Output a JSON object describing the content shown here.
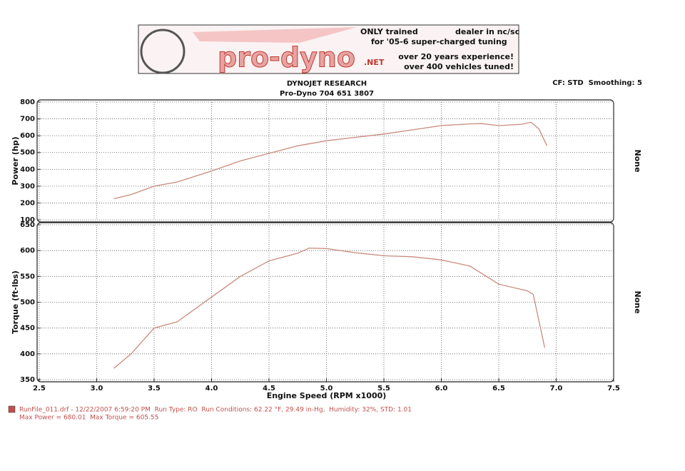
{
  "banner": {
    "logo": "pro-dyno",
    "logo_suffix": ".NET",
    "line1a": "ONLY trained",
    "line1b": "dealer in nc/sc",
    "line2": "for '05-6 super-charged tuning",
    "line3": "over 20 years experience!",
    "line4": "over 400 vehicles tuned!"
  },
  "footer": {
    "run": "RunFile_011.drf - 12/22/2007 6:59:20 PM  Run Type: RO  Run Conditions: 62.22 °F, 29.49 in-Hg,  Humidity: 32%, STD: 1.01",
    "summary": "Max Power = 680.01  Max Torque = 605.55",
    "color": "#c0504d"
  },
  "chart_data": [
    {
      "type": "line",
      "title": "DYNOJET RESEARCH",
      "subtitle": "Pro-Dyno 704 651 3807",
      "note": "CF: STD  Smoothing: 5",
      "ylabel": "Power (hp)",
      "y2label": "None",
      "grid": true,
      "x": [
        3.15,
        3.3,
        3.5,
        3.7,
        4.0,
        4.25,
        4.5,
        4.75,
        5.0,
        5.25,
        5.5,
        5.75,
        6.0,
        6.25,
        6.35,
        6.5,
        6.7,
        6.78,
        6.85,
        6.92
      ],
      "xlim": [
        2.5,
        7.5
      ],
      "series": [
        {
          "color": "#c98b7c",
          "values": [
            225,
            250,
            300,
            325,
            390,
            450,
            495,
            540,
            570,
            590,
            610,
            635,
            660,
            670,
            672,
            660,
            668,
            680,
            640,
            540
          ]
        }
      ],
      "ylim": [
        100,
        800
      ],
      "yticks": [
        100,
        200,
        300,
        400,
        500,
        600,
        700,
        800
      ]
    },
    {
      "type": "line",
      "ylabel": "Torque (ft-lbs)",
      "y2label": "None",
      "xlabel": "Engine Speed (RPM x1000)",
      "grid": true,
      "x": [
        3.15,
        3.3,
        3.5,
        3.7,
        4.0,
        4.25,
        4.5,
        4.75,
        4.85,
        5.0,
        5.25,
        5.5,
        5.75,
        6.0,
        6.25,
        6.5,
        6.75,
        6.8,
        6.9
      ],
      "xlim": [
        2.5,
        7.5
      ],
      "xticks": [
        2.5,
        {
          "value": 3,
          "label": "3.0"
        },
        3.5,
        {
          "value": 4,
          "label": "4.0"
        },
        4.5,
        {
          "value": 5,
          "label": "5.0"
        },
        5.5,
        {
          "value": 6,
          "label": "6.0"
        },
        6.5,
        {
          "value": 7,
          "label": "7.0"
        },
        7.5
      ],
      "series": [
        {
          "color": "#c98b7c",
          "values": [
            372,
            400,
            450,
            462,
            510,
            550,
            580,
            595,
            605,
            604,
            596,
            590,
            588,
            582,
            570,
            535,
            522,
            515,
            412
          ]
        }
      ],
      "ylim": [
        350,
        650
      ],
      "yticks": [
        350,
        400,
        450,
        500,
        550,
        600,
        650
      ]
    }
  ]
}
